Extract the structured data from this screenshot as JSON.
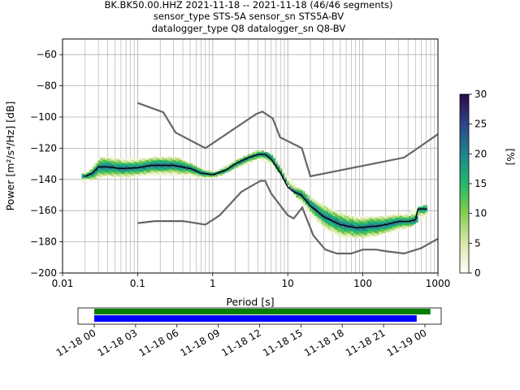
{
  "title": {
    "line1": "BK.BK50.00.HHZ   2021-11-18 -- 2021-11-18  (46/46 segments)",
    "line2": "sensor_type STS-5A sensor_sn STS5A-BV",
    "line3": "datalogger_type Q8 datalogger_sn Q8-BV"
  },
  "chart_data": {
    "type": "heatmap",
    "xlabel": "Period [s]",
    "ylabel": "Power [m²/s⁴/Hz] [dB]",
    "xscale": "log",
    "xlim": [
      0.01,
      1000
    ],
    "ylim": [
      -200,
      -50
    ],
    "xticks": [
      {
        "v": 0.01,
        "label": "0.01"
      },
      {
        "v": 0.1,
        "label": "0.1"
      },
      {
        "v": 1,
        "label": "1"
      },
      {
        "v": 10,
        "label": "10"
      },
      {
        "v": 100,
        "label": "100"
      },
      {
        "v": 1000,
        "label": "1000"
      }
    ],
    "yticks": [
      {
        "v": -60,
        "label": "−60"
      },
      {
        "v": -80,
        "label": "−80"
      },
      {
        "v": -100,
        "label": "−100"
      },
      {
        "v": -120,
        "label": "−120"
      },
      {
        "v": -140,
        "label": "−140"
      },
      {
        "v": -160,
        "label": "−160"
      },
      {
        "v": -180,
        "label": "−180"
      },
      {
        "v": -200,
        "label": "−200"
      }
    ],
    "grid": true,
    "colorbar": {
      "label": "[%]",
      "range": [
        0,
        30
      ],
      "ticks": [
        "0",
        "5",
        "10",
        "15",
        "20",
        "25",
        "30"
      ]
    },
    "nhnm": [
      [
        0.1,
        -91
      ],
      [
        0.22,
        -97
      ],
      [
        0.32,
        -110
      ],
      [
        0.8,
        -120
      ],
      [
        3.8,
        -98
      ],
      [
        4.6,
        -96.5
      ],
      [
        6.3,
        -101
      ],
      [
        7.9,
        -113
      ],
      [
        15.4,
        -120
      ],
      [
        20,
        -138
      ],
      [
        354.8,
        -126
      ],
      [
        1000,
        -111
      ]
    ],
    "nlnm": [
      [
        0.1,
        -168
      ],
      [
        0.17,
        -166.7
      ],
      [
        0.4,
        -166.7
      ],
      [
        0.8,
        -169
      ],
      [
        1.24,
        -163
      ],
      [
        2.4,
        -148
      ],
      [
        4.3,
        -141
      ],
      [
        5,
        -141
      ],
      [
        6,
        -149
      ],
      [
        10,
        -163
      ],
      [
        12,
        -165
      ],
      [
        15.6,
        -158
      ],
      [
        21.9,
        -176
      ],
      [
        31.6,
        -185
      ],
      [
        45,
        -187.5
      ],
      [
        70,
        -187.5
      ],
      [
        100,
        -185
      ],
      [
        150,
        -185
      ],
      [
        200,
        -186
      ],
      [
        354.8,
        -187.5
      ],
      [
        600,
        -184
      ],
      [
        1000,
        -178
      ]
    ],
    "mean": [
      [
        0.02,
        -138
      ],
      [
        0.025,
        -136
      ],
      [
        0.03,
        -132
      ],
      [
        0.04,
        -132
      ],
      [
        0.06,
        -133
      ],
      [
        0.1,
        -132.5
      ],
      [
        0.15,
        -131
      ],
      [
        0.3,
        -131
      ],
      [
        0.5,
        -133
      ],
      [
        0.7,
        -136
      ],
      [
        1,
        -137
      ],
      [
        1.5,
        -134
      ],
      [
        2,
        -130
      ],
      [
        3,
        -126
      ],
      [
        4,
        -124
      ],
      [
        5,
        -124
      ],
      [
        6,
        -127
      ],
      [
        8,
        -136
      ],
      [
        10,
        -145
      ],
      [
        12,
        -148
      ],
      [
        15,
        -150
      ],
      [
        20,
        -157
      ],
      [
        30,
        -164
      ],
      [
        50,
        -169
      ],
      [
        80,
        -171
      ],
      [
        150,
        -170
      ],
      [
        200,
        -169
      ],
      [
        300,
        -167
      ],
      [
        400,
        -167
      ],
      [
        500,
        -166
      ],
      [
        540,
        -159
      ],
      [
        700,
        -159
      ]
    ],
    "density_band": {
      "upper": [
        [
          0.02,
          -136
        ],
        [
          0.03,
          -126
        ],
        [
          0.05,
          -126
        ],
        [
          0.1,
          -127
        ],
        [
          0.2,
          -125
        ],
        [
          0.35,
          -126
        ],
        [
          0.6,
          -132
        ],
        [
          1,
          -135
        ],
        [
          2,
          -127
        ],
        [
          4,
          -121
        ],
        [
          6,
          -124
        ],
        [
          9,
          -135
        ],
        [
          12,
          -143
        ],
        [
          20,
          -152
        ],
        [
          40,
          -160
        ],
        [
          80,
          -164
        ],
        [
          200,
          -163
        ],
        [
          350,
          -163
        ],
        [
          500,
          -158
        ],
        [
          700,
          -156
        ]
      ],
      "lower": [
        [
          0.02,
          -141
        ],
        [
          0.03,
          -139
        ],
        [
          0.1,
          -138
        ],
        [
          0.3,
          -137
        ],
        [
          0.6,
          -139
        ],
        [
          1,
          -139
        ],
        [
          2,
          -133
        ],
        [
          4,
          -127
        ],
        [
          6,
          -131
        ],
        [
          9,
          -141
        ],
        [
          12,
          -150
        ],
        [
          20,
          -163
        ],
        [
          30,
          -172
        ],
        [
          50,
          -177
        ],
        [
          100,
          -178
        ],
        [
          200,
          -175
        ],
        [
          350,
          -172
        ],
        [
          500,
          -168
        ],
        [
          700,
          -163
        ]
      ]
    }
  },
  "timeline": {
    "tick_labels": [
      "11-18 00",
      "11-18 03",
      "11-18 06",
      "11-18 09",
      "11-18 12",
      "11-18 15",
      "11-18 18",
      "11-18 21",
      "11-19 00"
    ],
    "hours_span": 24,
    "green_end_hour": 24.4,
    "blue_end_hour": 23.4,
    "colors": {
      "green": "#008000",
      "blue": "#0000ff"
    }
  }
}
